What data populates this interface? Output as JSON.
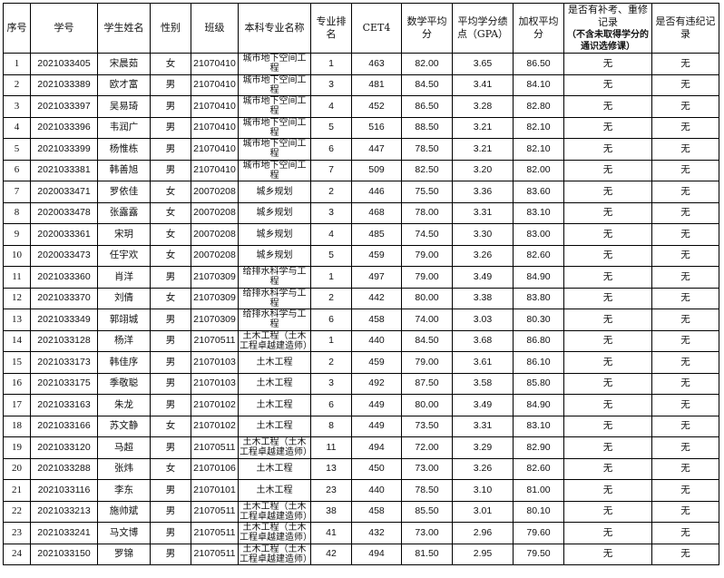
{
  "headers": [
    "序号",
    "学号",
    "学生姓名",
    "性别",
    "班级",
    "本科专业名称",
    "专业排名",
    "CET4",
    "数学平均分",
    "平均学分绩点（GPA）",
    "加权平均分",
    "是否有补考、重修记录",
    "是否有违纪记录"
  ],
  "header_note": "（不含未取得学分的通识选修课）",
  "rows": [
    [
      "1",
      "2021033405",
      "宋晨茹",
      "女",
      "21070410",
      "城市地下空间工程",
      "1",
      "463",
      "82.00",
      "3.65",
      "86.50",
      "无",
      "无"
    ],
    [
      "2",
      "2021033389",
      "欧才富",
      "男",
      "21070410",
      "城市地下空间工程",
      "3",
      "481",
      "84.50",
      "3.41",
      "84.10",
      "无",
      "无"
    ],
    [
      "3",
      "2021033397",
      "吴易琦",
      "男",
      "21070410",
      "城市地下空间工程",
      "4",
      "452",
      "86.50",
      "3.28",
      "82.80",
      "无",
      "无"
    ],
    [
      "4",
      "2021033396",
      "韦润广",
      "男",
      "21070410",
      "城市地下空间工程",
      "5",
      "516",
      "88.50",
      "3.21",
      "82.10",
      "无",
      "无"
    ],
    [
      "5",
      "2021033399",
      "杨惟栋",
      "男",
      "21070410",
      "城市地下空间工程",
      "6",
      "447",
      "78.50",
      "3.21",
      "82.10",
      "无",
      "无"
    ],
    [
      "6",
      "2021033381",
      "韩善旭",
      "男",
      "21070410",
      "城市地下空间工程",
      "7",
      "509",
      "82.50",
      "3.20",
      "82.00",
      "无",
      "无"
    ],
    [
      "7",
      "2020033471",
      "罗依佳",
      "女",
      "20070208",
      "城乡规划",
      "2",
      "446",
      "75.50",
      "3.36",
      "83.60",
      "无",
      "无"
    ],
    [
      "8",
      "2020033478",
      "张露露",
      "女",
      "20070208",
      "城乡规划",
      "3",
      "468",
      "78.00",
      "3.31",
      "83.10",
      "无",
      "无"
    ],
    [
      "9",
      "2020033361",
      "宋玥",
      "女",
      "20070208",
      "城乡规划",
      "4",
      "485",
      "74.50",
      "3.30",
      "83.00",
      "无",
      "无"
    ],
    [
      "10",
      "2020033473",
      "任宇欢",
      "女",
      "20070208",
      "城乡规划",
      "5",
      "459",
      "79.00",
      "3.26",
      "82.60",
      "无",
      "无"
    ],
    [
      "11",
      "2021033360",
      "肖洋",
      "男",
      "21070309",
      "给排水科学与工程",
      "1",
      "497",
      "79.00",
      "3.49",
      "84.90",
      "无",
      "无"
    ],
    [
      "12",
      "2021033370",
      "刘倩",
      "女",
      "21070309",
      "给排水科学与工程",
      "2",
      "442",
      "80.00",
      "3.38",
      "83.80",
      "无",
      "无"
    ],
    [
      "13",
      "2021033349",
      "郭翊城",
      "男",
      "21070309",
      "给排水科学与工程",
      "6",
      "458",
      "74.00",
      "3.03",
      "80.30",
      "无",
      "无"
    ],
    [
      "14",
      "2021033128",
      "杨洋",
      "男",
      "21070511",
      "土木工程（土木工程卓越建造师）",
      "1",
      "440",
      "84.50",
      "3.68",
      "86.80",
      "无",
      "无"
    ],
    [
      "15",
      "2021033173",
      "韩佳序",
      "男",
      "21070103",
      "土木工程",
      "2",
      "459",
      "79.00",
      "3.61",
      "86.10",
      "无",
      "无"
    ],
    [
      "16",
      "2021033175",
      "季敬聪",
      "男",
      "21070103",
      "土木工程",
      "3",
      "492",
      "87.50",
      "3.58",
      "85.80",
      "无",
      "无"
    ],
    [
      "17",
      "2021033163",
      "朱龙",
      "男",
      "21070102",
      "土木工程",
      "6",
      "449",
      "80.00",
      "3.49",
      "84.90",
      "无",
      "无"
    ],
    [
      "18",
      "2021033166",
      "苏文静",
      "女",
      "21070102",
      "土木工程",
      "8",
      "449",
      "73.50",
      "3.31",
      "83.10",
      "无",
      "无"
    ],
    [
      "19",
      "2021033120",
      "马超",
      "男",
      "21070511",
      "土木工程（土木工程卓越建造师）",
      "11",
      "494",
      "72.00",
      "3.29",
      "82.90",
      "无",
      "无"
    ],
    [
      "20",
      "2021033288",
      "张炜",
      "女",
      "21070106",
      "土木工程",
      "13",
      "450",
      "73.00",
      "3.26",
      "82.60",
      "无",
      "无"
    ],
    [
      "21",
      "2021033116",
      "李东",
      "男",
      "21070101",
      "土木工程",
      "23",
      "440",
      "78.50",
      "3.10",
      "81.00",
      "无",
      "无"
    ],
    [
      "22",
      "2021033213",
      "施帅斌",
      "男",
      "21070511",
      "土木工程（土木工程卓越建造师）",
      "38",
      "458",
      "85.50",
      "3.01",
      "80.10",
      "无",
      "无"
    ],
    [
      "23",
      "2021033241",
      "马文博",
      "男",
      "21070511",
      "土木工程（土木工程卓越建造师）",
      "41",
      "432",
      "73.00",
      "2.96",
      "79.60",
      "无",
      "无"
    ],
    [
      "24",
      "2021033150",
      "罗锦",
      "男",
      "21070511",
      "土木工程（土木工程卓越建造师）",
      "42",
      "494",
      "81.50",
      "2.95",
      "79.50",
      "无",
      "无"
    ]
  ]
}
